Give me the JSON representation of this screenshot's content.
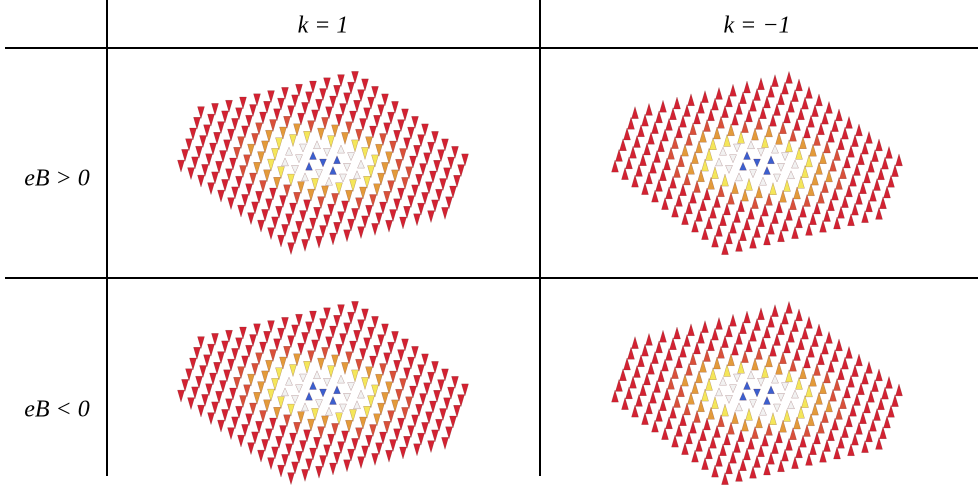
{
  "table": {
    "columns": [
      "k = 1",
      "k = −1"
    ],
    "rows": [
      "eB > 0",
      "eB < 0"
    ]
  }
}
